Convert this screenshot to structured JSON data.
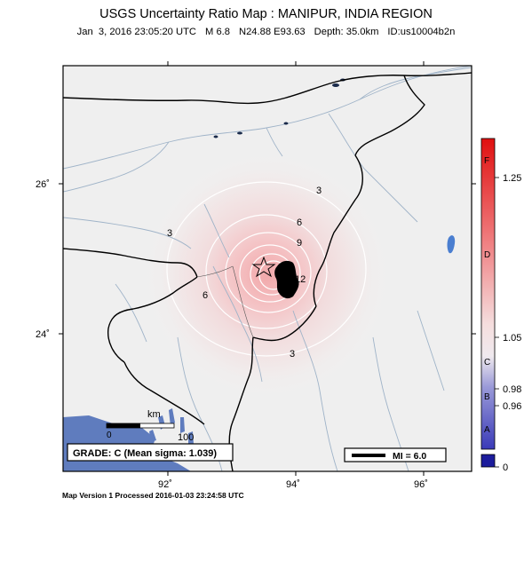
{
  "header": {
    "title": "USGS Uncertainty Ratio Map : MANIPUR, INDIA REGION",
    "datetime": "Jan  3, 2016 23:05:20 UTC",
    "magnitude": "M 6.8",
    "location": "N24.88 E93.63",
    "depth": "Depth: 35.0km",
    "event_id": "ID:us10004b2n"
  },
  "axes": {
    "lat_ticks": [
      "26˚",
      "24˚"
    ],
    "lon_ticks": [
      "92˚",
      "94˚",
      "96˚"
    ]
  },
  "contours": {
    "labels": [
      "3",
      "3",
      "3",
      "6",
      "6",
      "9",
      "12"
    ]
  },
  "colorbar": {
    "letters": [
      "F",
      "D",
      "C",
      "B",
      "A"
    ],
    "values": [
      "1.25",
      "1.05",
      "0.98",
      "0.96",
      "0"
    ],
    "top_color": "#e01010",
    "mid_color": "#f4f0f0",
    "bottom_color": "#1c1c9c"
  },
  "scale_bar": {
    "unit": "km",
    "zero": "0",
    "distance": "100"
  },
  "grade_box": {
    "text": "GRADE: C (Mean sigma: 1.039)"
  },
  "mmi_legend": {
    "text": "MI = 6.0"
  },
  "footer": {
    "text": "Map Version 1 Processed 2016-01-03 23:24:58 UTC"
  }
}
